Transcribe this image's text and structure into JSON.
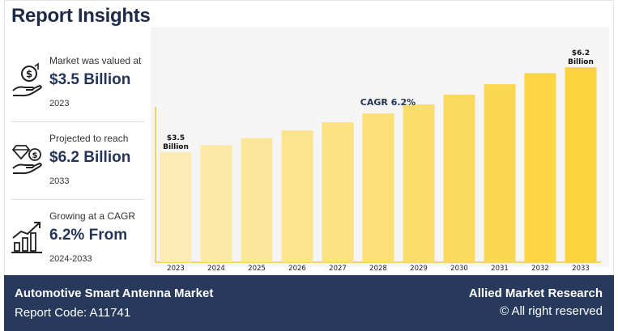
{
  "header": {
    "title": "Report Insights"
  },
  "stats": [
    {
      "label": "Market was valued at",
      "value": "$3.5 Billion",
      "year": "2023",
      "icon": "money-hand-icon"
    },
    {
      "label": "Projected to reach",
      "value": "$6.2 Billion",
      "year": "2033",
      "icon": "diamond-coin-hand-icon"
    },
    {
      "label": "Growing at a CAGR",
      "value": "6.2% From",
      "year": "2024-2033",
      "icon": "growth-chart-icon"
    }
  ],
  "footer": {
    "market": "Automotive Smart Antenna Market",
    "report_code": "Report Code: A11741",
    "brand": "Allied Market Research",
    "rights": "© All right reserved"
  },
  "colors": {
    "navy": "#273a5c",
    "bar_light": "#fcebb4",
    "bar_dark": "#fbd33a",
    "axis": "#f4d35e"
  },
  "chart_data": {
    "type": "bar",
    "annotation": "CAGR 6.2%",
    "categories": [
      "2023",
      "2024",
      "2025",
      "2026",
      "2027",
      "2028",
      "2029",
      "2030",
      "2031",
      "2032",
      "2033"
    ],
    "values": [
      3.5,
      3.72,
      3.95,
      4.19,
      4.45,
      4.73,
      5.02,
      5.33,
      5.66,
      6.01,
      6.2
    ],
    "data_labels": [
      {
        "index": 0,
        "line1": "$3.5",
        "line2": "Billion"
      },
      {
        "index": 10,
        "line1": "$6.2",
        "line2": "Billion"
      }
    ],
    "ylim": [
      0,
      7.0
    ],
    "grid": false
  }
}
